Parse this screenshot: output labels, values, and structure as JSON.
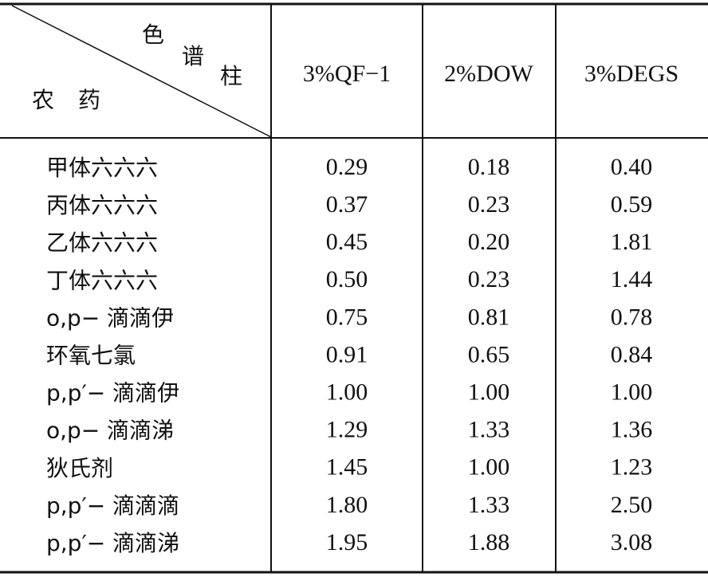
{
  "table": {
    "corner": {
      "column_label_chars": [
        "色",
        "谱",
        "柱"
      ],
      "row_label": "农药"
    },
    "columns": [
      "3%QF−1",
      "2%DOW",
      "3%DEGS"
    ],
    "rows": [
      [
        "甲体六六六",
        "0.29",
        "0.18",
        "0.40"
      ],
      [
        "丙体六六六",
        "0.37",
        "0.23",
        "0.59"
      ],
      [
        "乙体六六六",
        "0.45",
        "0.20",
        "1.81"
      ],
      [
        "丁体六六六",
        "0.50",
        "0.23",
        "1.44"
      ],
      [
        "o,p− 滴滴伊",
        "0.75",
        "0.81",
        "0.78"
      ],
      [
        "环氧七氯",
        "0.91",
        "0.65",
        "0.84"
      ],
      [
        "p,p′− 滴滴伊",
        "1.00",
        "1.00",
        "1.00"
      ],
      [
        "o,p− 滴滴涕",
        "1.29",
        "1.33",
        "1.36"
      ],
      [
        "狄氏剂",
        "1.45",
        "1.00",
        "1.23"
      ],
      [
        "p,p′− 滴滴滴",
        "1.80",
        "1.33",
        "2.50"
      ],
      [
        "p,p′− 滴滴涕",
        "1.95",
        "1.88",
        "3.08"
      ]
    ]
  }
}
